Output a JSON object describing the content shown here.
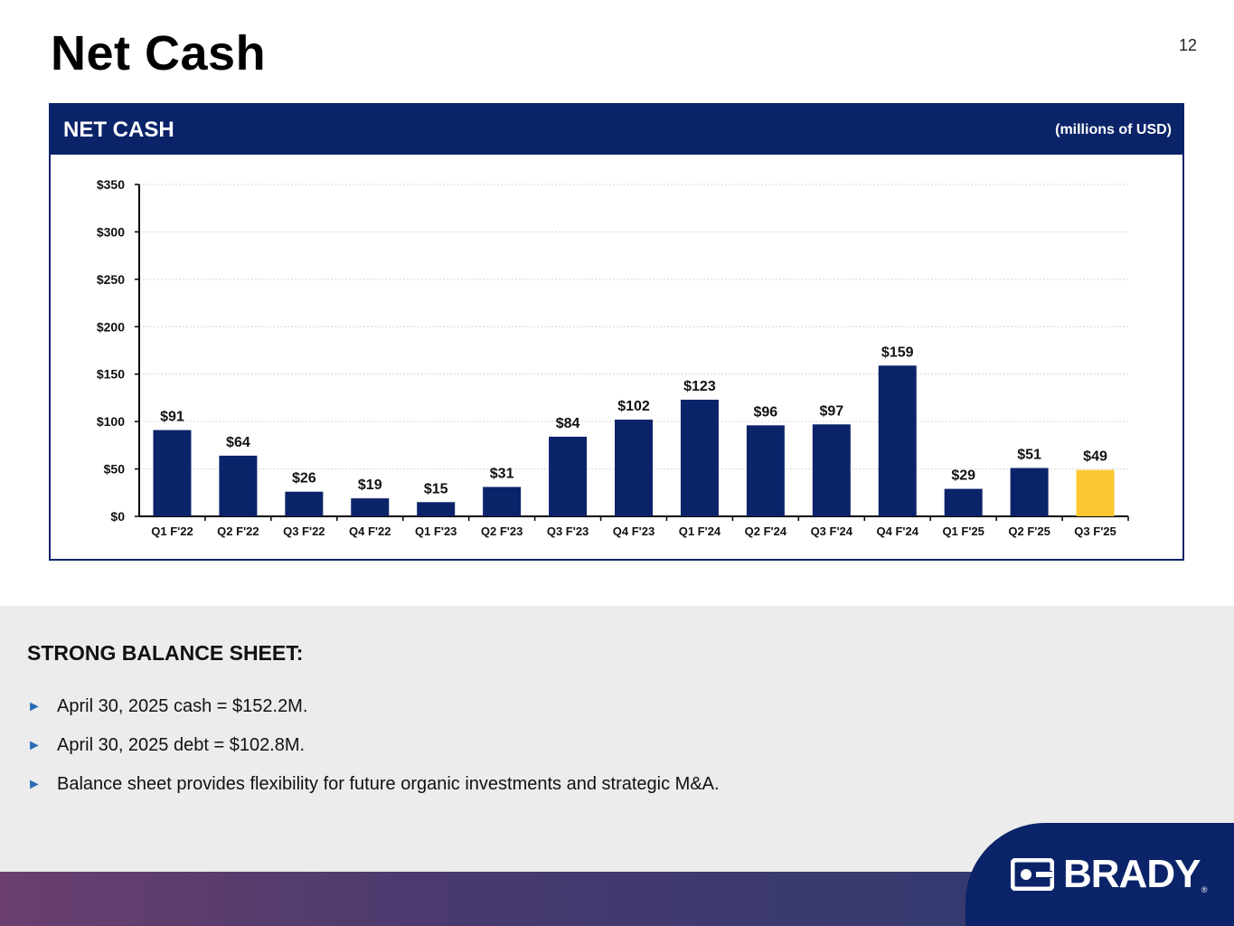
{
  "slide": {
    "title": "Net Cash",
    "page_number": "12"
  },
  "chart_panel": {
    "header_title": "NET CASH",
    "units": "(millions of USD)"
  },
  "chart_data": {
    "type": "bar",
    "title": "NET CASH",
    "ylabel": "",
    "xlabel": "",
    "units": "millions of USD",
    "categories": [
      "Q1 F'22",
      "Q2 F'22",
      "Q3 F'22",
      "Q4 F'22",
      "Q1 F'23",
      "Q2 F'23",
      "Q3 F'23",
      "Q4 F'23",
      "Q1 F'24",
      "Q2 F'24",
      "Q3 F'24",
      "Q4 F'24",
      "Q1 F'25",
      "Q2 F'25",
      "Q3 F'25"
    ],
    "values": [
      91,
      64,
      26,
      19,
      15,
      31,
      84,
      102,
      123,
      96,
      97,
      159,
      29,
      51,
      49
    ],
    "data_labels": [
      "$91",
      "$64",
      "$26",
      "$19",
      "$15",
      "$31",
      "$84",
      "$102",
      "$123",
      "$96",
      "$97",
      "$159",
      "$29",
      "$51",
      "$49"
    ],
    "ylim": [
      0,
      350
    ],
    "yticks": [
      0,
      50,
      100,
      150,
      200,
      250,
      300,
      350
    ],
    "ytick_labels": [
      "$0",
      "$50",
      "$100",
      "$150",
      "$200",
      "$250",
      "$300",
      "$350"
    ],
    "grid": true,
    "bar_color": "#0b2369",
    "highlight_color": "#fcc731",
    "highlight_index": 14
  },
  "balance_sheet": {
    "heading": "STRONG BALANCE SHEET:",
    "bullets": [
      "April 30, 2025 cash = $152.2M.",
      "April 30, 2025 debt = $102.8M.",
      "Balance sheet provides flexibility for future organic investments and strategic M&A."
    ],
    "bullet_icon": "play-arrow-icon"
  },
  "brand": {
    "logo_text": "BRADY",
    "registered_mark": "®",
    "primary_color": "#0b2369"
  }
}
